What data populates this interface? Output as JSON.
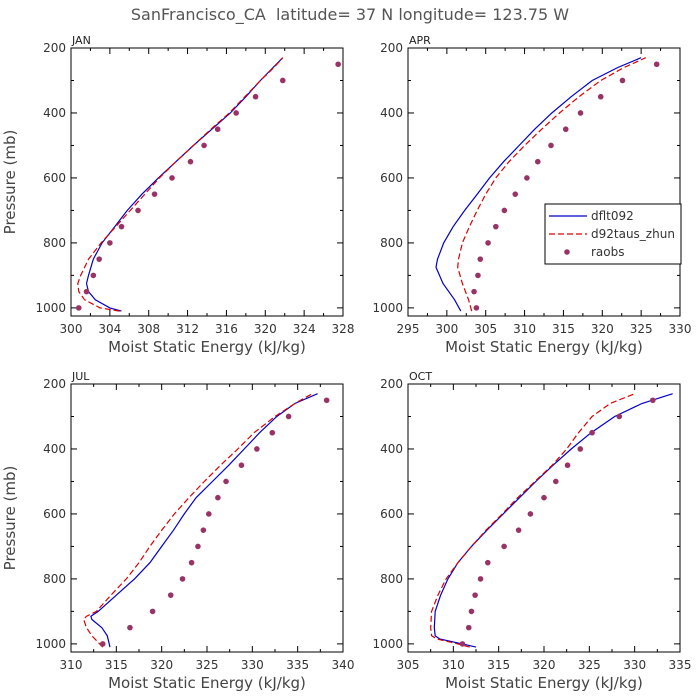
{
  "title": "SanFrancisco_CA  latitude= 37 N longitude= 123.75 W",
  "chart_data": [
    {
      "type": "line",
      "panel": "JAN",
      "xlabel": "Moist Static Energy (kJ/kg)",
      "ylabel": "Pressure (mb)",
      "xlim": [
        300,
        328
      ],
      "ylim": [
        1025,
        200
      ],
      "xticks": [
        300,
        304,
        308,
        312,
        316,
        320,
        324,
        328
      ],
      "yticks": [
        200,
        400,
        600,
        800,
        1000
      ],
      "legend": false,
      "series": [
        {
          "name": "dflt092",
          "style": "solid",
          "color": "#0000cc",
          "points": [
            [
              305.2,
              1010
            ],
            [
              304.0,
              1000
            ],
            [
              302.5,
              975
            ],
            [
              301.8,
              950
            ],
            [
              301.6,
              925
            ],
            [
              301.8,
              900
            ],
            [
              302.3,
              850
            ],
            [
              303.2,
              800
            ],
            [
              304.5,
              750
            ],
            [
              305.8,
              700
            ],
            [
              307.3,
              650
            ],
            [
              309.0,
              600
            ],
            [
              310.8,
              550
            ],
            [
              312.6,
              500
            ],
            [
              314.5,
              450
            ],
            [
              316.4,
              400
            ],
            [
              318.0,
              350
            ],
            [
              319.5,
              300
            ],
            [
              320.8,
              260
            ],
            [
              321.8,
              230
            ]
          ]
        },
        {
          "name": "d92taus_zhun",
          "style": "dashed",
          "color": "#dd0000",
          "points": [
            [
              305.0,
              1010
            ],
            [
              303.0,
              1000
            ],
            [
              301.4,
              975
            ],
            [
              300.8,
              950
            ],
            [
              300.7,
              925
            ],
            [
              301.0,
              900
            ],
            [
              301.8,
              850
            ],
            [
              303.1,
              800
            ],
            [
              304.6,
              750
            ],
            [
              306.1,
              700
            ],
            [
              307.6,
              650
            ],
            [
              309.1,
              600
            ],
            [
              310.8,
              550
            ],
            [
              312.6,
              500
            ],
            [
              314.4,
              450
            ],
            [
              316.3,
              400
            ],
            [
              317.9,
              350
            ],
            [
              319.5,
              300
            ],
            [
              320.9,
              260
            ],
            [
              321.8,
              230
            ]
          ]
        },
        {
          "name": "raobs",
          "style": "dots",
          "color": "#993366",
          "points": [
            [
              300.8,
              1000
            ],
            [
              301.6,
              950
            ],
            [
              302.3,
              900
            ],
            [
              302.9,
              850
            ],
            [
              304.0,
              800
            ],
            [
              305.2,
              750
            ],
            [
              306.9,
              700
            ],
            [
              308.6,
              650
            ],
            [
              310.4,
              600
            ],
            [
              312.3,
              550
            ],
            [
              313.7,
              500
            ],
            [
              315.1,
              450
            ],
            [
              317.0,
              400
            ],
            [
              319.0,
              350
            ],
            [
              321.8,
              300
            ],
            [
              327.5,
              250
            ]
          ]
        }
      ]
    },
    {
      "type": "line",
      "panel": "APR",
      "xlabel": "Moist Static Energy (kJ/kg)",
      "ylabel": "",
      "xlim": [
        295,
        330
      ],
      "ylim": [
        1025,
        200
      ],
      "xticks": [
        295,
        300,
        305,
        310,
        315,
        320,
        325,
        330
      ],
      "yticks": [
        200,
        400,
        600,
        800,
        1000
      ],
      "legend": true,
      "series": [
        {
          "name": "dflt092",
          "style": "solid",
          "color": "#0000cc",
          "points": [
            [
              301.8,
              1010
            ],
            [
              301.0,
              975
            ],
            [
              299.5,
              925
            ],
            [
              298.6,
              875
            ],
            [
              298.8,
              850
            ],
            [
              299.6,
              800
            ],
            [
              300.8,
              750
            ],
            [
              302.3,
              700
            ],
            [
              303.9,
              650
            ],
            [
              305.5,
              600
            ],
            [
              307.3,
              550
            ],
            [
              309.3,
              500
            ],
            [
              311.3,
              450
            ],
            [
              313.5,
              400
            ],
            [
              316.0,
              350
            ],
            [
              318.7,
              300
            ],
            [
              322.0,
              260
            ],
            [
              325.0,
              230
            ]
          ]
        },
        {
          "name": "d92taus_zhun",
          "style": "dashed",
          "color": "#dd0000",
          "points": [
            [
              303.2,
              1010
            ],
            [
              302.8,
              975
            ],
            [
              302.0,
              925
            ],
            [
              301.4,
              875
            ],
            [
              301.5,
              850
            ],
            [
              302.0,
              800
            ],
            [
              302.9,
              750
            ],
            [
              303.9,
              700
            ],
            [
              305.0,
              650
            ],
            [
              306.3,
              600
            ],
            [
              308.0,
              550
            ],
            [
              310.0,
              500
            ],
            [
              312.2,
              450
            ],
            [
              314.5,
              400
            ],
            [
              317.0,
              350
            ],
            [
              319.8,
              300
            ],
            [
              322.8,
              260
            ],
            [
              325.6,
              230
            ]
          ]
        },
        {
          "name": "raobs",
          "style": "dots",
          "color": "#993366",
          "points": [
            [
              303.8,
              1000
            ],
            [
              303.5,
              950
            ],
            [
              304.0,
              900
            ],
            [
              304.3,
              850
            ],
            [
              305.3,
              800
            ],
            [
              306.3,
              750
            ],
            [
              307.4,
              700
            ],
            [
              308.8,
              650
            ],
            [
              310.3,
              600
            ],
            [
              311.7,
              550
            ],
            [
              313.4,
              500
            ],
            [
              315.3,
              450
            ],
            [
              317.2,
              400
            ],
            [
              319.8,
              350
            ],
            [
              322.6,
              300
            ],
            [
              327.0,
              250
            ]
          ]
        }
      ]
    },
    {
      "type": "line",
      "panel": "JUL",
      "xlabel": "Moist Static Energy (kJ/kg)",
      "ylabel": "Pressure (mb)",
      "xlim": [
        310,
        340
      ],
      "ylim": [
        1025,
        200
      ],
      "xticks": [
        310,
        315,
        320,
        325,
        330,
        335,
        340
      ],
      "yticks": [
        200,
        400,
        600,
        800,
        1000
      ],
      "legend": false,
      "series": [
        {
          "name": "dflt092",
          "style": "solid",
          "color": "#0000cc",
          "points": [
            [
              314.3,
              1010
            ],
            [
              314.0,
              975
            ],
            [
              313.4,
              950
            ],
            [
              312.3,
              925
            ],
            [
              312.2,
              915
            ],
            [
              313.0,
              900
            ],
            [
              315.0,
              850
            ],
            [
              317.0,
              800
            ],
            [
              318.7,
              750
            ],
            [
              320.0,
              700
            ],
            [
              321.3,
              650
            ],
            [
              322.5,
              600
            ],
            [
              323.8,
              550
            ],
            [
              325.6,
              500
            ],
            [
              327.4,
              450
            ],
            [
              329.1,
              400
            ],
            [
              330.8,
              350
            ],
            [
              332.7,
              300
            ],
            [
              334.7,
              260
            ],
            [
              337.2,
              230
            ]
          ]
        },
        {
          "name": "d92taus_zhun",
          "style": "dashed",
          "color": "#dd0000",
          "points": [
            [
              313.5,
              1010
            ],
            [
              312.3,
              975
            ],
            [
              311.7,
              950
            ],
            [
              311.4,
              925
            ],
            [
              311.7,
              915
            ],
            [
              312.8,
              900
            ],
            [
              314.4,
              850
            ],
            [
              316.1,
              800
            ],
            [
              317.5,
              750
            ],
            [
              318.7,
              700
            ],
            [
              320.0,
              650
            ],
            [
              321.4,
              600
            ],
            [
              323.0,
              550
            ],
            [
              324.7,
              500
            ],
            [
              326.5,
              450
            ],
            [
              328.4,
              400
            ],
            [
              330.2,
              350
            ],
            [
              332.5,
              300
            ],
            [
              334.7,
              260
            ],
            [
              336.6,
              230
            ]
          ]
        },
        {
          "name": "raobs",
          "style": "dots",
          "color": "#993366",
          "points": [
            [
              313.5,
              1000
            ],
            [
              316.5,
              950
            ],
            [
              319.0,
              900
            ],
            [
              321.0,
              850
            ],
            [
              322.3,
              800
            ],
            [
              323.3,
              750
            ],
            [
              324.0,
              700
            ],
            [
              324.6,
              650
            ],
            [
              325.2,
              600
            ],
            [
              326.2,
              550
            ],
            [
              327.1,
              500
            ],
            [
              328.8,
              450
            ],
            [
              330.5,
              400
            ],
            [
              332.2,
              350
            ],
            [
              334.0,
              300
            ],
            [
              338.2,
              250
            ]
          ]
        }
      ]
    },
    {
      "type": "line",
      "panel": "OCT",
      "xlabel": "Moist Static Energy (kJ/kg)",
      "ylabel": "",
      "xlim": [
        305,
        335
      ],
      "ylim": [
        1025,
        200
      ],
      "xticks": [
        305,
        310,
        315,
        320,
        325,
        330,
        335
      ],
      "yticks": [
        200,
        400,
        600,
        800,
        1000
      ],
      "legend": false,
      "series": [
        {
          "name": "dflt092",
          "style": "solid",
          "color": "#0000cc",
          "points": [
            [
              312.5,
              1010
            ],
            [
              311.0,
              1000
            ],
            [
              308.5,
              985
            ],
            [
              308.0,
              975
            ],
            [
              307.9,
              950
            ],
            [
              308.0,
              900
            ],
            [
              308.6,
              850
            ],
            [
              309.4,
              800
            ],
            [
              310.5,
              750
            ],
            [
              312.0,
              700
            ],
            [
              313.7,
              650
            ],
            [
              315.5,
              600
            ],
            [
              317.3,
              550
            ],
            [
              319.1,
              500
            ],
            [
              321.0,
              450
            ],
            [
              323.0,
              400
            ],
            [
              325.2,
              350
            ],
            [
              327.8,
              300
            ],
            [
              330.8,
              260
            ],
            [
              334.2,
              230
            ]
          ]
        },
        {
          "name": "d92taus_zhun",
          "style": "dashed",
          "color": "#dd0000",
          "points": [
            [
              311.8,
              1010
            ],
            [
              310.5,
              1000
            ],
            [
              308.2,
              985
            ],
            [
              307.6,
              975
            ],
            [
              307.5,
              950
            ],
            [
              307.6,
              900
            ],
            [
              308.3,
              850
            ],
            [
              309.2,
              800
            ],
            [
              310.5,
              750
            ],
            [
              312.0,
              700
            ],
            [
              313.6,
              650
            ],
            [
              315.4,
              600
            ],
            [
              317.1,
              550
            ],
            [
              319.0,
              500
            ],
            [
              320.9,
              450
            ],
            [
              322.5,
              400
            ],
            [
              323.8,
              350
            ],
            [
              325.3,
              300
            ],
            [
              327.3,
              260
            ],
            [
              330.0,
              230
            ]
          ]
        },
        {
          "name": "raobs",
          "style": "dots",
          "color": "#993366",
          "points": [
            [
              311.0,
              1000
            ],
            [
              311.7,
              950
            ],
            [
              312.0,
              900
            ],
            [
              312.4,
              850
            ],
            [
              313.0,
              800
            ],
            [
              313.8,
              750
            ],
            [
              315.6,
              700
            ],
            [
              317.2,
              650
            ],
            [
              318.5,
              600
            ],
            [
              320.0,
              550
            ],
            [
              321.3,
              500
            ],
            [
              322.6,
              450
            ],
            [
              324.0,
              400
            ],
            [
              325.3,
              350
            ],
            [
              328.3,
              300
            ],
            [
              332.0,
              250
            ]
          ]
        }
      ]
    }
  ]
}
